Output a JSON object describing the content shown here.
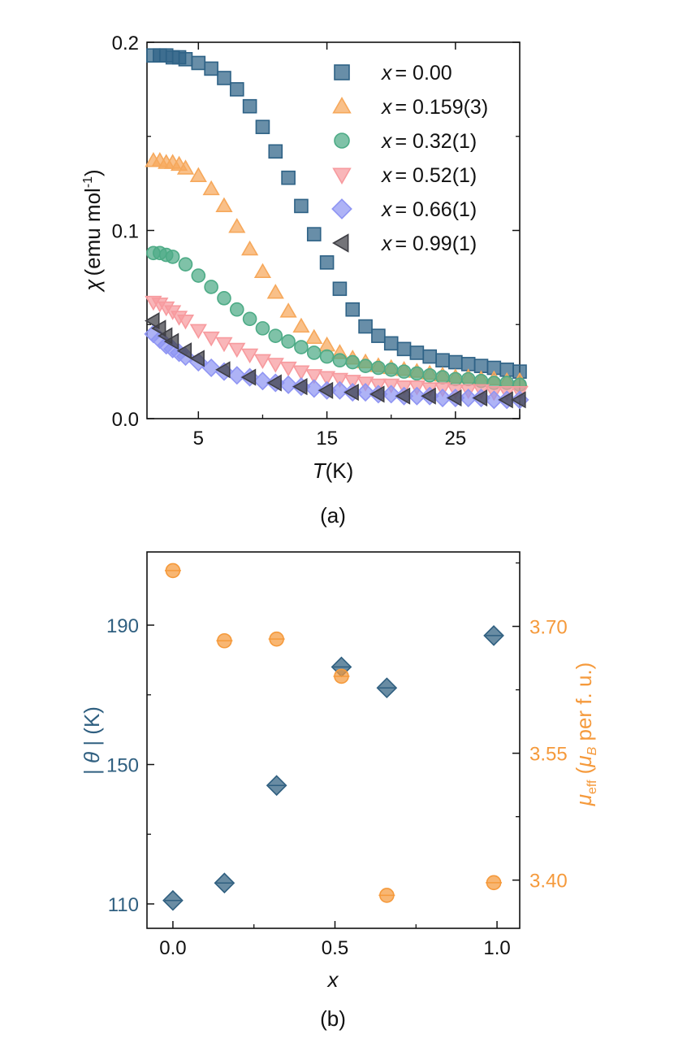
{
  "colors": {
    "x000": "#2e6286",
    "x159": "#f6a85b",
    "x32": "#4dab86",
    "x52": "#f79a9e",
    "x66": "#8f95f3",
    "x99": "#3f3f45",
    "theta": "#2f5f80",
    "mu": "#f59a3c"
  },
  "chart_data": [
    {
      "type": "scatter",
      "panel_label": "(a)",
      "xlabel": {
        "sym": "T",
        "unit": "(K)"
      },
      "ylabel": {
        "sym": "χ",
        "unit": "(emu mol",
        "exp": "-1",
        "close": ")"
      },
      "xlim": [
        1,
        30
      ],
      "ylim": [
        0,
        0.2
      ],
      "xticks": [
        5,
        15,
        25
      ],
      "yticks": [
        0.0,
        0.1,
        0.2
      ],
      "ytick_labels": [
        "0.0",
        "0.1",
        "0.2"
      ],
      "legend_position": "top-right",
      "series": [
        {
          "name": "x = 0.00",
          "lhs": "x",
          "rhs": "= 0.00",
          "marker": "square",
          "color": "#2e6286",
          "x": [
            1.5,
            2,
            2.5,
            3,
            3.5,
            4,
            5,
            6,
            7,
            8,
            9,
            10,
            11,
            12,
            13,
            14,
            15,
            16,
            17,
            18,
            19,
            20,
            21,
            22,
            23,
            24,
            25,
            26,
            27,
            28,
            29,
            30
          ],
          "y": [
            0.193,
            0.193,
            0.193,
            0.192,
            0.192,
            0.191,
            0.189,
            0.186,
            0.181,
            0.175,
            0.166,
            0.155,
            0.142,
            0.128,
            0.113,
            0.098,
            0.083,
            0.069,
            0.058,
            0.049,
            0.044,
            0.04,
            0.037,
            0.035,
            0.033,
            0.031,
            0.03,
            0.029,
            0.028,
            0.027,
            0.026,
            0.025
          ]
        },
        {
          "name": "x = 0.159(3)",
          "lhs": "x",
          "rhs": "= 0.159(3)",
          "marker": "triangle-up",
          "color": "#f6a85b",
          "x": [
            1.5,
            2,
            2.5,
            3,
            3.5,
            4,
            5,
            6,
            7,
            8,
            9,
            10,
            11,
            12,
            13,
            14,
            15,
            16,
            17,
            18,
            19,
            20,
            21,
            22,
            23,
            24,
            25,
            26,
            27,
            28,
            29,
            30
          ],
          "y": [
            0.137,
            0.137,
            0.136,
            0.136,
            0.135,
            0.133,
            0.129,
            0.122,
            0.113,
            0.102,
            0.09,
            0.078,
            0.067,
            0.057,
            0.049,
            0.043,
            0.039,
            0.035,
            0.032,
            0.03,
            0.028,
            0.027,
            0.026,
            0.025,
            0.024,
            0.023,
            0.022,
            0.022,
            0.021,
            0.021,
            0.02,
            0.02
          ]
        },
        {
          "name": "x = 0.32(1)",
          "lhs": "x",
          "rhs": "= 0.32(1)",
          "marker": "circle",
          "color": "#4dab86",
          "x": [
            1.5,
            2,
            2.5,
            3,
            4,
            5,
            6,
            7,
            8,
            9,
            10,
            11,
            12,
            13,
            14,
            15,
            16,
            17,
            18,
            19,
            20,
            21,
            22,
            23,
            24,
            25,
            26,
            27,
            28,
            29,
            30
          ],
          "y": [
            0.088,
            0.088,
            0.087,
            0.086,
            0.082,
            0.076,
            0.07,
            0.064,
            0.058,
            0.053,
            0.048,
            0.044,
            0.041,
            0.038,
            0.035,
            0.033,
            0.031,
            0.03,
            0.028,
            0.027,
            0.026,
            0.025,
            0.024,
            0.023,
            0.022,
            0.021,
            0.021,
            0.02,
            0.019,
            0.019,
            0.018
          ]
        },
        {
          "name": "x = 0.52(1)",
          "lhs": "x",
          "rhs": "= 0.52(1)",
          "marker": "triangle-down",
          "color": "#f79a9e",
          "x": [
            1.5,
            2,
            2.5,
            3,
            3.5,
            4,
            5,
            6,
            7,
            8,
            9,
            10,
            11,
            12,
            13,
            14,
            15,
            16,
            17,
            18,
            19,
            20,
            21,
            22,
            23,
            24,
            25,
            26,
            27,
            28,
            29,
            30
          ],
          "y": [
            0.062,
            0.061,
            0.059,
            0.057,
            0.054,
            0.052,
            0.047,
            0.043,
            0.04,
            0.037,
            0.034,
            0.031,
            0.029,
            0.027,
            0.025,
            0.023,
            0.022,
            0.021,
            0.02,
            0.019,
            0.018,
            0.018,
            0.017,
            0.017,
            0.016,
            0.016,
            0.015,
            0.015,
            0.015,
            0.014,
            0.014,
            0.014
          ]
        },
        {
          "name": "x = 0.66(1)",
          "lhs": "x",
          "rhs": "= 0.66(1)",
          "marker": "diamond",
          "color": "#8f95f3",
          "x": [
            1.5,
            2,
            2.5,
            3,
            3.5,
            4,
            5,
            6,
            7,
            8,
            9,
            10,
            11,
            12,
            13,
            14,
            15,
            16,
            17,
            18,
            19,
            20,
            21,
            22,
            23,
            24,
            25,
            26,
            27,
            28,
            29,
            30
          ],
          "y": [
            0.045,
            0.042,
            0.039,
            0.037,
            0.035,
            0.033,
            0.03,
            0.027,
            0.025,
            0.023,
            0.022,
            0.02,
            0.019,
            0.018,
            0.017,
            0.016,
            0.015,
            0.015,
            0.014,
            0.014,
            0.013,
            0.013,
            0.012,
            0.012,
            0.012,
            0.011,
            0.011,
            0.011,
            0.011,
            0.01,
            0.01,
            0.01
          ]
        },
        {
          "name": "x = 0.99(1)",
          "lhs": "x",
          "rhs": "= 0.99(1)",
          "marker": "triangle-left",
          "color": "#3f3f45",
          "x": [
            1.5,
            2,
            2.5,
            3,
            4,
            5,
            7,
            9,
            11,
            13,
            15,
            17,
            19,
            21,
            23,
            25,
            27,
            29,
            30
          ],
          "y": [
            0.052,
            0.048,
            0.044,
            0.041,
            0.036,
            0.032,
            0.026,
            0.022,
            0.019,
            0.017,
            0.015,
            0.014,
            0.013,
            0.012,
            0.012,
            0.011,
            0.011,
            0.01,
            0.01
          ]
        }
      ]
    },
    {
      "type": "scatter",
      "panel_label": "(b)",
      "xlabel": "x",
      "xlim": [
        -0.08,
        1.07
      ],
      "xticks": [
        0.0,
        0.5,
        1.0
      ],
      "xtick_labels": [
        "0.0",
        "0.5",
        "1.0"
      ],
      "y_left": {
        "label_parts": [
          "| ",
          "θ",
          " | ",
          " (K)"
        ],
        "lim": [
          103,
          211
        ],
        "ticks": [
          110,
          150,
          190
        ],
        "tick_labels": [
          "110",
          "150",
          "190"
        ],
        "color": "#2f5f80"
      },
      "y_right": {
        "label_parts": [
          "μ",
          "eff",
          " (",
          "μ",
          "B",
          " per f. u.)"
        ],
        "lim": [
          3.343,
          3.788
        ],
        "ticks": [
          3.4,
          3.55,
          3.7
        ],
        "tick_labels": [
          "3.40",
          "3.55",
          "3.70"
        ],
        "color": "#f59a3c"
      },
      "series": [
        {
          "axis": "left",
          "marker": "diamond",
          "color": "#2f5f80",
          "x": [
            0.0,
            0.159,
            0.32,
            0.52,
            0.66,
            0.99
          ],
          "y": [
            111,
            116,
            144,
            178,
            172,
            187
          ],
          "xerr": 0.025
        },
        {
          "axis": "right",
          "marker": "circle",
          "color": "#f59a3c",
          "x": [
            0.0,
            0.159,
            0.32,
            0.52,
            0.66,
            0.99
          ],
          "y": [
            3.766,
            3.683,
            3.685,
            3.641,
            3.382,
            3.397
          ],
          "xerr": 0.025
        }
      ]
    }
  ]
}
